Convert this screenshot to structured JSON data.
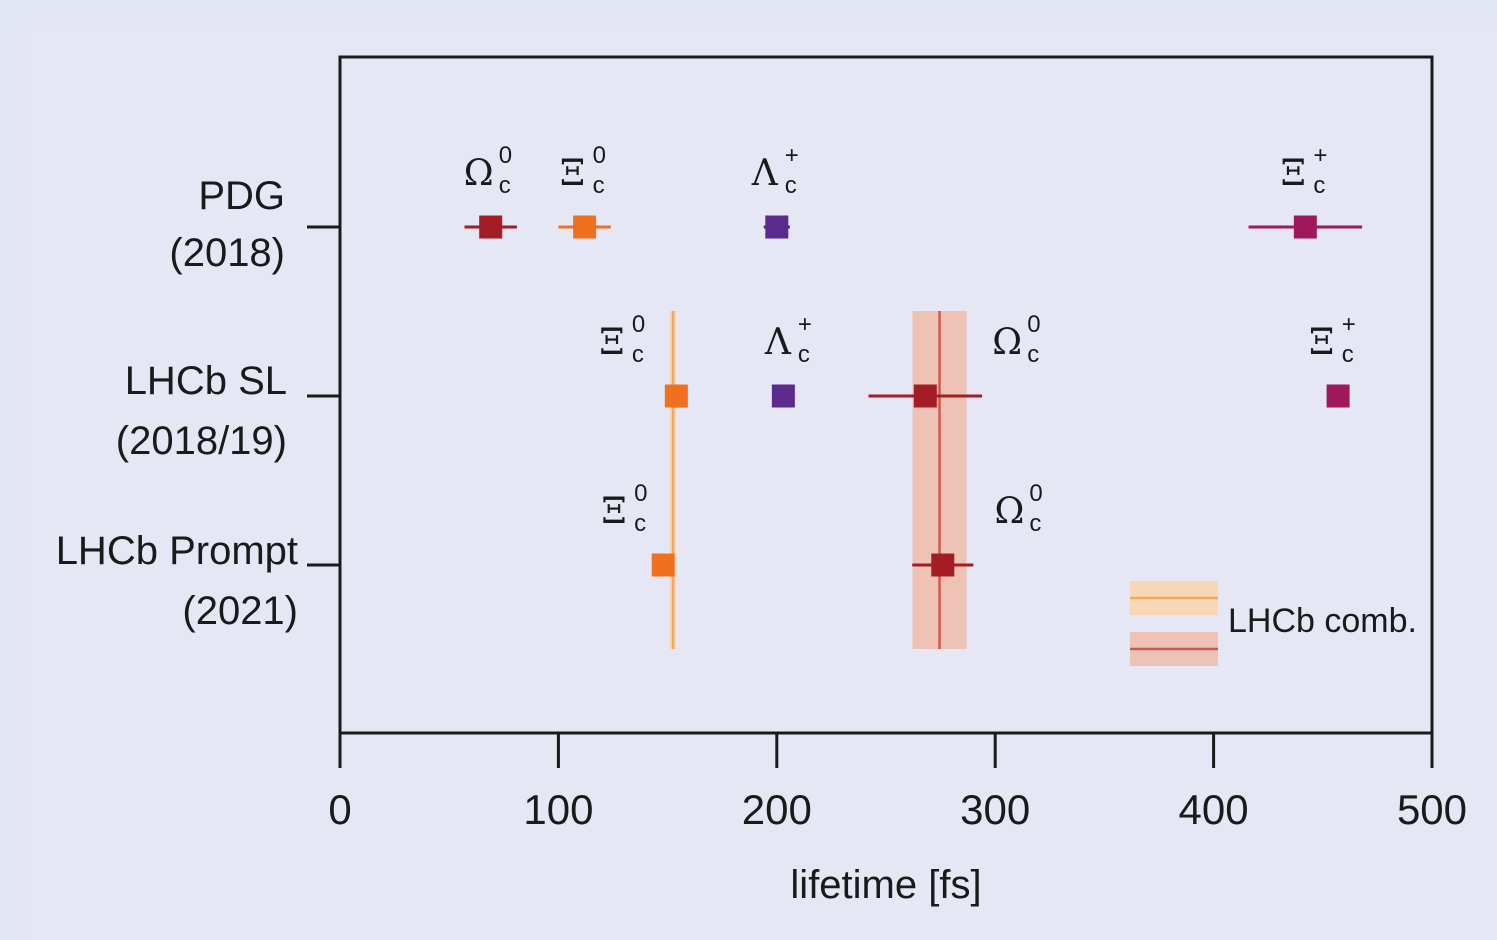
{
  "chart_data": {
    "type": "scatter",
    "xlabel": "lifetime [fs]",
    "xlim": [
      0,
      500
    ],
    "xticks": [
      "0",
      "100",
      "200",
      "300",
      "400",
      "500"
    ],
    "rows": [
      {
        "id": "pdg",
        "line1": "PDG",
        "line2": "(2018)"
      },
      {
        "id": "sl",
        "line1": "LHCb SL",
        "line2": "(2018/19)"
      },
      {
        "id": "prompt",
        "line1": "LHCb Prompt",
        "line2": "(2021)"
      }
    ],
    "points": [
      {
        "row": "pdg",
        "particle": "Omega_c^0",
        "x": 69,
        "err": 12,
        "color": "#a51d24"
      },
      {
        "row": "pdg",
        "particle": "Xi_c^0",
        "x": 112,
        "err": 12,
        "color": "#f07020"
      },
      {
        "row": "pdg",
        "particle": "Lambda_c^+",
        "x": 200,
        "err": 6,
        "color": "#5a2a8c"
      },
      {
        "row": "pdg",
        "particle": "Xi_c^+",
        "x": 442,
        "err": 26,
        "color": "#a0185c"
      },
      {
        "row": "sl",
        "particle": "Xi_c^0",
        "x": 154,
        "err": 3,
        "color": "#f07020"
      },
      {
        "row": "sl",
        "particle": "Lambda_c^+",
        "x": 203,
        "err": 3,
        "color": "#5a2a8c"
      },
      {
        "row": "sl",
        "particle": "Omega_c^0",
        "x": 268,
        "err": 26,
        "color": "#a51d24"
      },
      {
        "row": "sl",
        "particle": "Xi_c^+",
        "x": 457,
        "err": 4,
        "color": "#a0185c"
      },
      {
        "row": "prompt",
        "particle": "Xi_c^0",
        "x": 148,
        "err": 3,
        "color": "#f07020"
      },
      {
        "row": "prompt",
        "particle": "Omega_c^0",
        "x": 276,
        "err": 14,
        "color": "#a51d24"
      }
    ],
    "labels": [
      {
        "row": "pdg",
        "sym": "Ω",
        "sub": "c",
        "sup": "0",
        "x": 69,
        "rotated": false
      },
      {
        "row": "pdg",
        "sym": "Ξ",
        "sub": "c",
        "sup": "0",
        "x": 112,
        "rotated": false
      },
      {
        "row": "pdg",
        "sym": "Λ",
        "sub": "c",
        "sup": "+",
        "x": 200,
        "rotated": false
      },
      {
        "row": "pdg",
        "sym": "Ξ",
        "sub": "c",
        "sup": "+",
        "x": 442,
        "rotated": false
      },
      {
        "row": "sl",
        "sym": "Ξ",
        "sub": "c",
        "sup": "0",
        "x": 130,
        "rotated": false
      },
      {
        "row": "sl",
        "sym": "Λ",
        "sub": "c",
        "sup": "+",
        "x": 206,
        "rotated": false
      },
      {
        "row": "sl",
        "sym": "Ω",
        "sub": "c",
        "sup": "0",
        "x": 311,
        "rotated": false
      },
      {
        "row": "sl",
        "sym": "Ξ",
        "sub": "c",
        "sup": "+",
        "x": 455,
        "rotated": false
      },
      {
        "row": "prompt",
        "sym": "Ξ",
        "sub": "c",
        "sup": "0",
        "x": 131,
        "rotated": false
      },
      {
        "row": "prompt",
        "sym": "Ω",
        "sub": "c",
        "sup": "0",
        "x": 312,
        "rotated": false
      }
    ],
    "combined_bands": [
      {
        "particle": "Xi_c^0",
        "center": 152.5,
        "err": 1.5,
        "band_color": "#f8d7b5",
        "line_color": "#f4a860"
      },
      {
        "particle": "Omega_c^0",
        "center": 274.5,
        "err": 12.4,
        "band_color": "#eec3b6",
        "line_color": "#d0584c"
      }
    ],
    "legend": {
      "label": "LHCb comb.",
      "position": "bottom-right"
    }
  }
}
